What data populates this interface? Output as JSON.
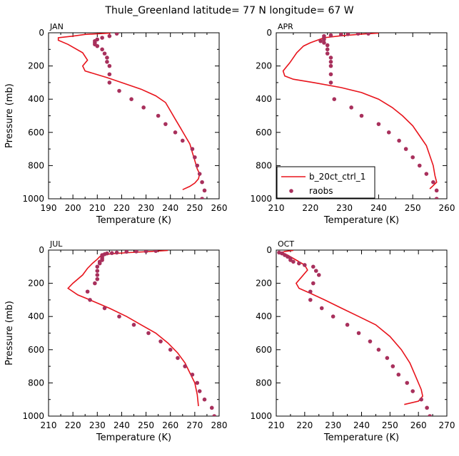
{
  "figure_title": "Thule_Greenland   latitude= 77 N longitude= 67 W",
  "colors": {
    "model": "#e8141c",
    "obs": "#a8305c"
  },
  "legend": {
    "model_label": "b_20ct_ctrl_1",
    "obs_label": "raobs"
  },
  "chart_data": [
    {
      "type": "line",
      "panel": "JAN",
      "xlabel": "Temperature (K)",
      "ylabel": "Pressure (mb)",
      "xlim": [
        190,
        260
      ],
      "xticks": [
        190,
        200,
        210,
        220,
        230,
        240,
        250,
        260
      ],
      "ylim": [
        0,
        1000
      ],
      "yticks": [
        0,
        200,
        400,
        600,
        800,
        1000
      ],
      "y_inverted": true,
      "series": [
        {
          "kind": "line",
          "points": [
            [
              215.5,
              2
            ],
            [
              205,
              10
            ],
            [
              200,
              20
            ],
            [
              194,
              30
            ],
            [
              194,
              45
            ],
            [
              198,
              70
            ],
            [
              204,
              120
            ],
            [
              206,
              165
            ],
            [
              204,
              200
            ],
            [
              205,
              230
            ],
            [
              214,
              270
            ],
            [
              220,
              300
            ],
            [
              228,
              340
            ],
            [
              234,
              380
            ],
            [
              238,
              420
            ],
            [
              240,
              470
            ],
            [
              242,
              520
            ],
            [
              244,
              570
            ],
            [
              246,
              620
            ],
            [
              248,
              670
            ],
            [
              249,
              720
            ],
            [
              250,
              770
            ],
            [
              251,
              820
            ],
            [
              252,
              850
            ],
            [
              251.5,
              880
            ],
            [
              250,
              905
            ],
            [
              248,
              925
            ],
            [
              245,
              945
            ]
          ]
        },
        {
          "kind": "scatter",
          "name": "raobs",
          "points": [
            [
              218,
              5
            ],
            [
              215,
              20
            ],
            [
              212,
              30
            ],
            [
              210,
              40
            ],
            [
              209,
              50
            ],
            [
              209,
              60
            ],
            [
              209,
              70
            ],
            [
              210,
              80
            ],
            [
              212,
              100
            ],
            [
              213,
              125
            ],
            [
              214,
              150
            ],
            [
              214,
              175
            ],
            [
              215,
              200
            ],
            [
              215,
              250
            ],
            [
              215,
              300
            ],
            [
              219,
              350
            ],
            [
              224,
              400
            ],
            [
              229,
              450
            ],
            [
              235,
              500
            ],
            [
              238,
              550
            ],
            [
              242,
              600
            ],
            [
              245,
              650
            ],
            [
              249,
              700
            ],
            [
              250,
              750
            ],
            [
              251,
              800
            ],
            [
              252,
              850
            ],
            [
              253,
              900
            ],
            [
              254,
              950
            ],
            [
              253,
              1000
            ]
          ]
        }
      ]
    },
    {
      "type": "line",
      "panel": "APR",
      "xlabel": "Temperature (K)",
      "ylabel": "Pressure (mb)",
      "xlim": [
        210,
        260
      ],
      "xticks": [
        210,
        220,
        230,
        240,
        250,
        260
      ],
      "ylim": [
        0,
        1000
      ],
      "yticks": [
        0,
        200,
        400,
        600,
        800,
        1000
      ],
      "y_inverted": true,
      "series": [
        {
          "kind": "line",
          "name": "b_20ct_ctrl_1",
          "points": [
            [
              240,
              2
            ],
            [
              235,
              8
            ],
            [
              229,
              18
            ],
            [
              224,
              30
            ],
            [
              222,
              45
            ],
            [
              220,
              60
            ],
            [
              218,
              80
            ],
            [
              216,
              120
            ],
            [
              214,
              180
            ],
            [
              212,
              230
            ],
            [
              212.5,
              260
            ],
            [
              215,
              280
            ],
            [
              221,
              300
            ],
            [
              229,
              330
            ],
            [
              235,
              360
            ],
            [
              240,
              400
            ],
            [
              244,
              450
            ],
            [
              247,
              500
            ],
            [
              250,
              560
            ],
            [
              252,
              620
            ],
            [
              254,
              680
            ],
            [
              255,
              740
            ],
            [
              256,
              800
            ],
            [
              256.5,
              860
            ],
            [
              257,
              900
            ],
            [
              256,
              920
            ],
            [
              255,
              940
            ]
          ]
        },
        {
          "kind": "scatter",
          "name": "raobs",
          "points": [
            [
              237,
              5
            ],
            [
              234,
              5
            ],
            [
              231,
              8
            ],
            [
              229,
              10
            ],
            [
              226,
              15
            ],
            [
              224,
              20
            ],
            [
              224,
              30
            ],
            [
              224,
              40
            ],
            [
              223,
              50
            ],
            [
              224,
              60
            ],
            [
              225,
              75
            ],
            [
              225,
              100
            ],
            [
              225,
              125
            ],
            [
              226,
              150
            ],
            [
              226,
              175
            ],
            [
              226,
              200
            ],
            [
              226,
              250
            ],
            [
              226,
              300
            ],
            [
              227,
              400
            ],
            [
              232,
              450
            ],
            [
              235,
              500
            ],
            [
              240,
              550
            ],
            [
              243,
              600
            ],
            [
              246,
              650
            ],
            [
              248,
              700
            ],
            [
              250,
              750
            ],
            [
              252,
              800
            ],
            [
              254,
              850
            ],
            [
              256,
              900
            ],
            [
              257,
              950
            ],
            [
              257,
              1000
            ]
          ]
        }
      ]
    },
    {
      "type": "line",
      "panel": "JUL",
      "xlabel": "Temperature (K)",
      "ylabel": "Pressure (mb)",
      "xlim": [
        210,
        280
      ],
      "xticks": [
        210,
        220,
        230,
        240,
        250,
        260,
        270,
        280
      ],
      "ylim": [
        0,
        1000
      ],
      "yticks": [
        0,
        200,
        400,
        600,
        800,
        1000
      ],
      "y_inverted": true,
      "series": [
        {
          "kind": "line",
          "points": [
            [
              259,
              2
            ],
            [
              252,
              8
            ],
            [
              243,
              15
            ],
            [
              236,
              22
            ],
            [
              232,
              30
            ],
            [
              231,
              40
            ],
            [
              230,
              55
            ],
            [
              228,
              80
            ],
            [
              226,
              110
            ],
            [
              224,
              150
            ],
            [
              220,
              200
            ],
            [
              218,
              230
            ],
            [
              222,
              270
            ],
            [
              227,
              300
            ],
            [
              235,
              350
            ],
            [
              242,
              400
            ],
            [
              248,
              450
            ],
            [
              254,
              500
            ],
            [
              259,
              560
            ],
            [
              263,
              620
            ],
            [
              266,
              680
            ],
            [
              268,
              740
            ],
            [
              270,
              800
            ],
            [
              271,
              870
            ],
            [
              271.5,
              940
            ]
          ]
        },
        {
          "kind": "scatter",
          "name": "raobs",
          "points": [
            [
              254,
              5
            ],
            [
              250,
              7
            ],
            [
              246,
              8
            ],
            [
              242,
              10
            ],
            [
              238,
              15
            ],
            [
              236,
              18
            ],
            [
              234,
              20
            ],
            [
              233,
              25
            ],
            [
              232,
              30
            ],
            [
              232,
              40
            ],
            [
              232,
              50
            ],
            [
              232,
              60
            ],
            [
              231,
              70
            ],
            [
              231,
              80
            ],
            [
              230,
              100
            ],
            [
              230,
              125
            ],
            [
              230,
              150
            ],
            [
              230,
              175
            ],
            [
              229,
              200
            ],
            [
              226,
              250
            ],
            [
              227,
              300
            ],
            [
              233,
              350
            ],
            [
              239,
              400
            ],
            [
              245,
              450
            ],
            [
              251,
              500
            ],
            [
              256,
              550
            ],
            [
              260,
              600
            ],
            [
              263,
              650
            ],
            [
              266,
              700
            ],
            [
              269,
              750
            ],
            [
              271,
              800
            ],
            [
              272,
              850
            ],
            [
              274,
              900
            ],
            [
              277,
              950
            ],
            [
              278,
              1000
            ]
          ]
        }
      ]
    },
    {
      "type": "line",
      "panel": "OCT",
      "xlabel": "Temperature (K)",
      "ylabel": "Pressure (mb)",
      "xlim": [
        210,
        270
      ],
      "xticks": [
        210,
        220,
        230,
        240,
        250,
        260,
        270
      ],
      "ylim": [
        0,
        1000
      ],
      "yticks": [
        0,
        200,
        400,
        600,
        800,
        1000
      ],
      "y_inverted": true,
      "series": [
        {
          "kind": "line",
          "points": [
            [
              216,
              2
            ],
            [
              213,
              8
            ],
            [
              212,
              15
            ],
            [
              214,
              30
            ],
            [
              217,
              60
            ],
            [
              220,
              90
            ],
            [
              221,
              120
            ],
            [
              219,
              160
            ],
            [
              217,
              200
            ],
            [
              218,
              230
            ],
            [
              222,
              260
            ],
            [
              227,
              300
            ],
            [
              233,
              350
            ],
            [
              239,
              400
            ],
            [
              245,
              450
            ],
            [
              250,
              520
            ],
            [
              254,
              600
            ],
            [
              257,
              680
            ],
            [
              259,
              760
            ],
            [
              261,
              840
            ],
            [
              261.5,
              880
            ],
            [
              260,
              910
            ],
            [
              255,
              930
            ]
          ]
        },
        {
          "kind": "scatter",
          "name": "raobs",
          "points": [
            [
              211,
              15
            ],
            [
              212,
              20
            ],
            [
              213,
              30
            ],
            [
              214,
              40
            ],
            [
              215,
              50
            ],
            [
              215,
              60
            ],
            [
              216,
              70
            ],
            [
              218,
              80
            ],
            [
              220,
              90
            ],
            [
              223,
              100
            ],
            [
              224,
              125
            ],
            [
              225,
              150
            ],
            [
              223,
              200
            ],
            [
              222,
              250
            ],
            [
              222,
              300
            ],
            [
              226,
              350
            ],
            [
              230,
              400
            ],
            [
              235,
              450
            ],
            [
              239,
              500
            ],
            [
              243,
              550
            ],
            [
              246,
              600
            ],
            [
              249,
              650
            ],
            [
              251,
              700
            ],
            [
              253,
              750
            ],
            [
              256,
              800
            ],
            [
              258,
              850
            ],
            [
              261,
              900
            ],
            [
              263,
              950
            ],
            [
              264,
              1000
            ]
          ]
        }
      ]
    }
  ]
}
